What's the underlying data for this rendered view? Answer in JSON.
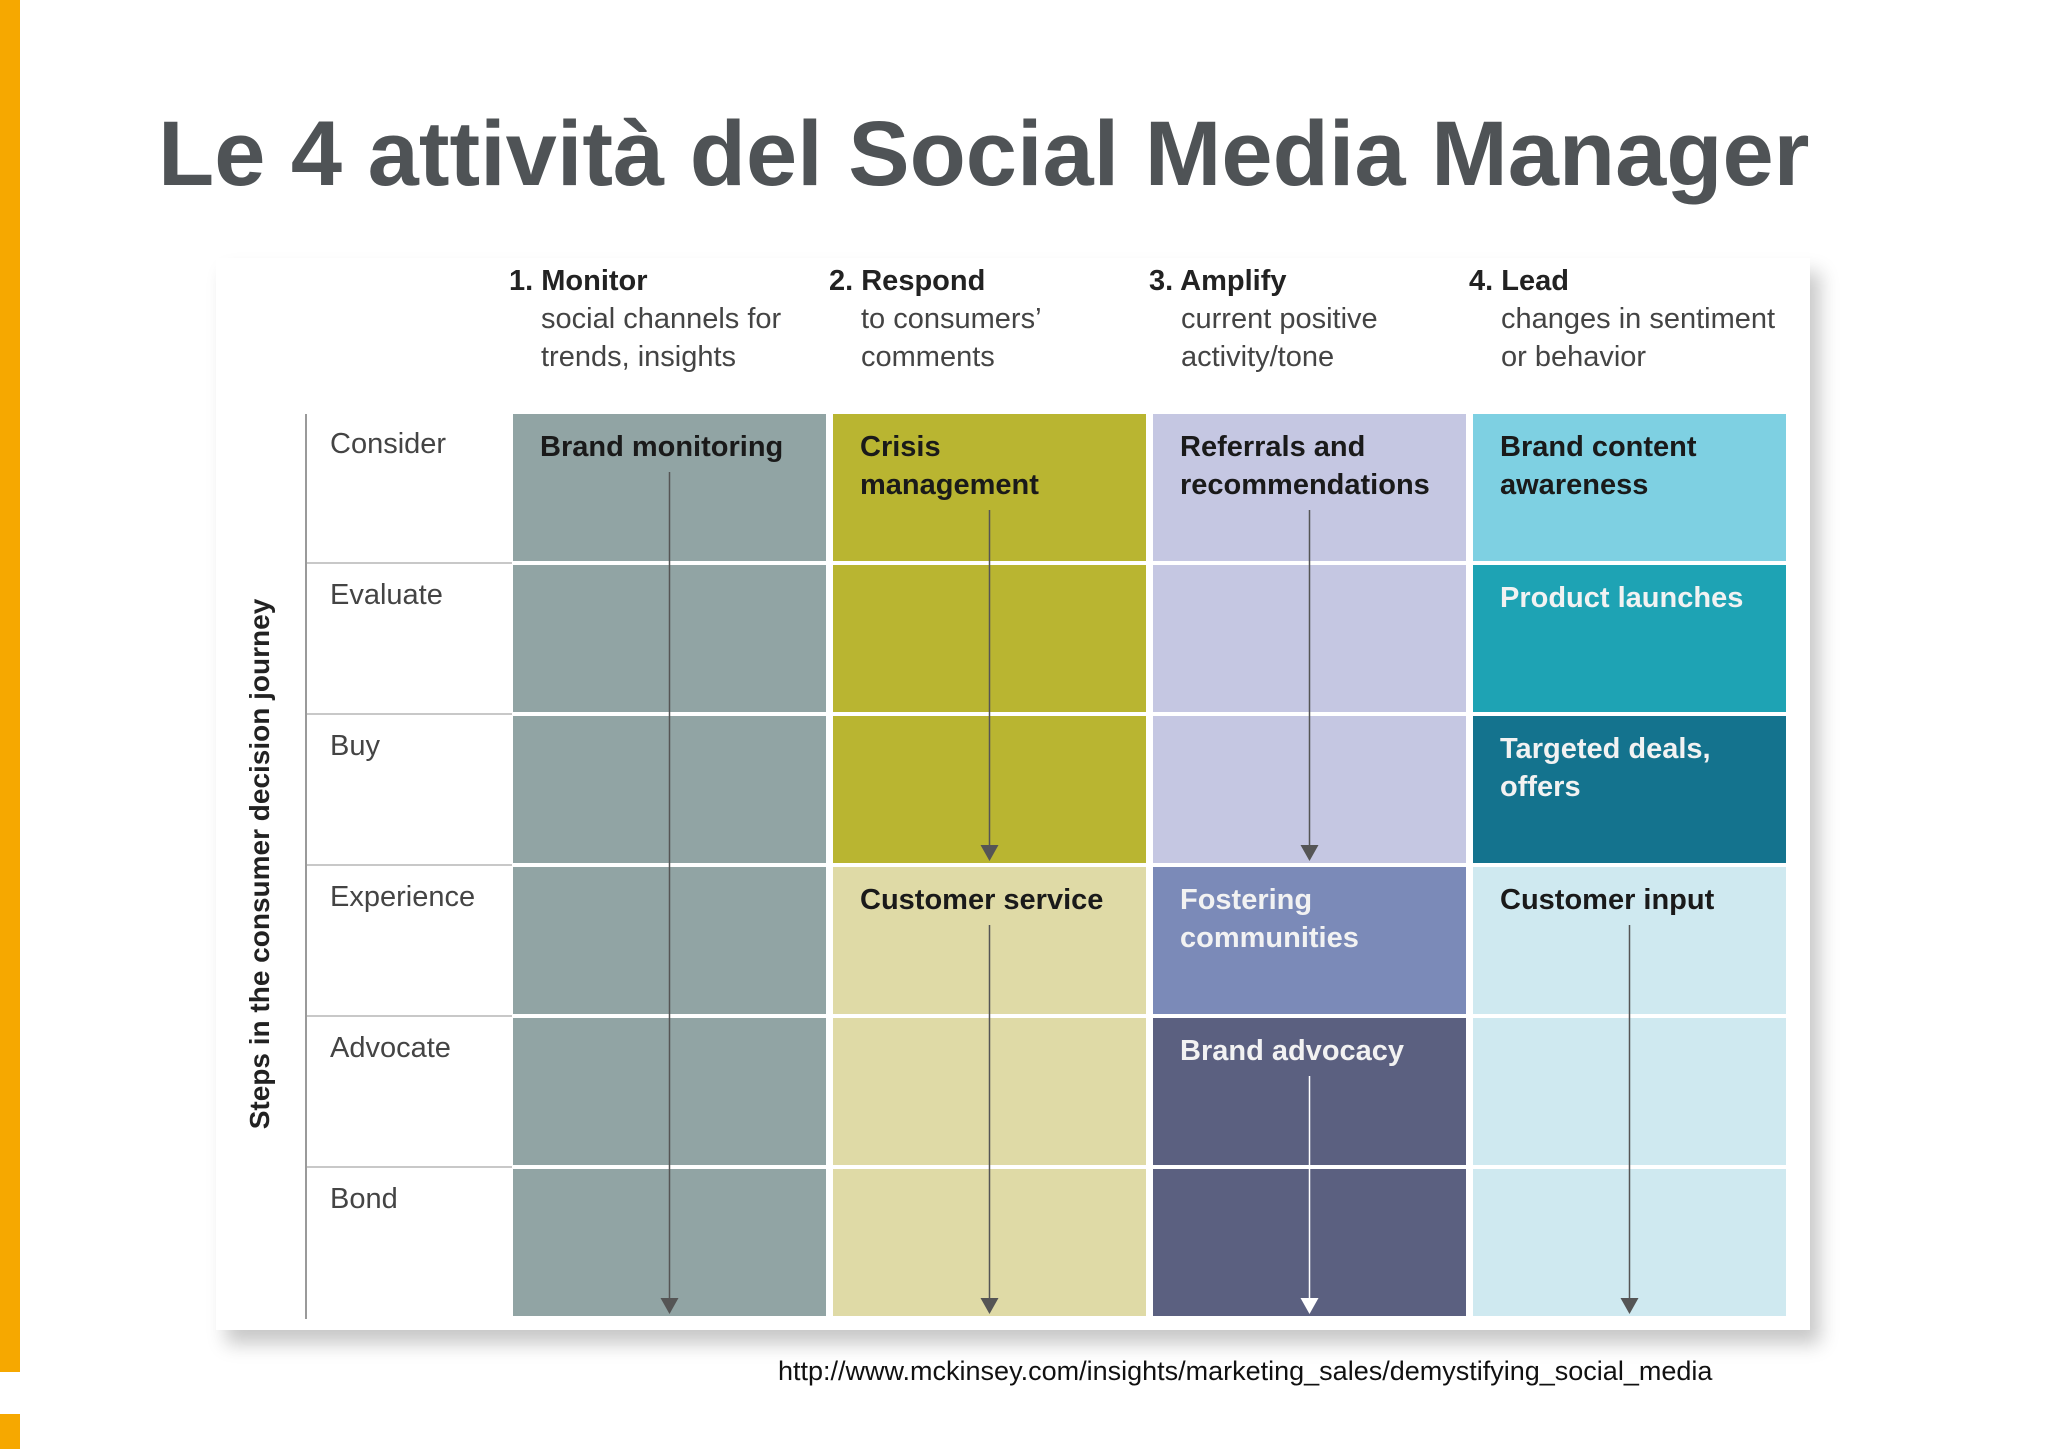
{
  "title": "Le 4 attività del Social Media Manager",
  "axis_title": "Steps in the consumer decision journey",
  "source": "http://www.mckinsey.com/insights/marketing_sales/demystifying_social_media",
  "columns": [
    {
      "number": "1.",
      "name": "Monitor",
      "desc_line1": "social channels for",
      "desc_line2": "trends, insights"
    },
    {
      "number": "2.",
      "name": "Respond",
      "desc_line1": "to consumers’",
      "desc_line2": "comments"
    },
    {
      "number": "3.",
      "name": "Amplify",
      "desc_line1": "current positive",
      "desc_line2": "activity/tone"
    },
    {
      "number": "4.",
      "name": "Lead",
      "desc_line1": "changes in sentiment",
      "desc_line2": "or behavior"
    }
  ],
  "rows": [
    "Consider",
    "Evaluate",
    "Buy",
    "Experience",
    "Advocate",
    "Bond"
  ],
  "cells": [
    {
      "col": 0,
      "row_start": 0,
      "row_end": 5,
      "color": "#91a4a4",
      "text_color": "#1a1a1a",
      "lines": [
        "Brand monitoring"
      ],
      "arrow": true,
      "arrow_color": "#555555"
    },
    {
      "col": 1,
      "row_start": 0,
      "row_end": 2,
      "color": "#b9b531",
      "text_color": "#1a1a1a",
      "lines": [
        "Crisis",
        "management"
      ],
      "arrow": true,
      "arrow_color": "#555555"
    },
    {
      "col": 1,
      "row_start": 3,
      "row_end": 5,
      "color": "#dfdaa6",
      "text_color": "#1a1a1a",
      "lines": [
        "Customer service"
      ],
      "arrow": true,
      "arrow_color": "#555555"
    },
    {
      "col": 2,
      "row_start": 0,
      "row_end": 2,
      "color": "#c5c7e2",
      "text_color": "#1a1a1a",
      "lines": [
        "Referrals and",
        "recommendations"
      ],
      "arrow": true,
      "arrow_color": "#555555"
    },
    {
      "col": 2,
      "row_start": 3,
      "row_end": 3,
      "color": "#7b8ab8",
      "text_color": "#f2f2f2",
      "lines": [
        "Fostering",
        "communities"
      ],
      "arrow": false
    },
    {
      "col": 2,
      "row_start": 4,
      "row_end": 5,
      "color": "#5b6080",
      "text_color": "#f2f2f2",
      "lines": [
        "Brand advocacy"
      ],
      "arrow": true,
      "arrow_color": "#ffffff"
    },
    {
      "col": 3,
      "row_start": 0,
      "row_end": 0,
      "color": "#7ed0e2",
      "text_color": "#1a1a1a",
      "lines": [
        "Brand content",
        "awareness"
      ],
      "arrow": false
    },
    {
      "col": 3,
      "row_start": 1,
      "row_end": 1,
      "color": "#1ea3b4",
      "text_color": "#f2f2f2",
      "lines": [
        "Product launches"
      ],
      "arrow": false
    },
    {
      "col": 3,
      "row_start": 2,
      "row_end": 2,
      "color": "#14738e",
      "text_color": "#f2f2f2",
      "lines": [
        "Targeted deals,",
        "offers"
      ],
      "arrow": false
    },
    {
      "col": 3,
      "row_start": 3,
      "row_end": 5,
      "color": "#cfe9f0",
      "text_color": "#1a1a1a",
      "lines": [
        "Customer input"
      ],
      "arrow": true,
      "arrow_color": "#555555"
    }
  ]
}
